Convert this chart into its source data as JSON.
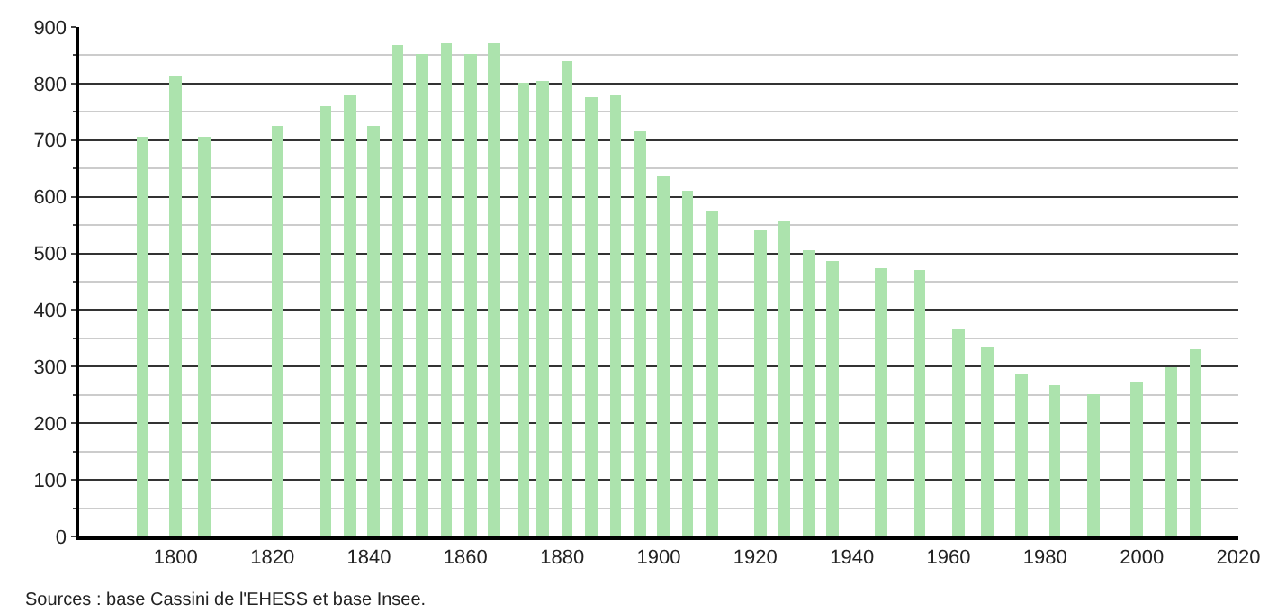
{
  "chart_data": {
    "type": "bar",
    "color": "#ace3ad",
    "x": [
      1793,
      1800,
      1806,
      1821,
      1831,
      1836,
      1841,
      1846,
      1851,
      1856,
      1861,
      1866,
      1872,
      1876,
      1881,
      1886,
      1891,
      1896,
      1901,
      1906,
      1911,
      1921,
      1926,
      1931,
      1936,
      1946,
      1954,
      1962,
      1968,
      1975,
      1982,
      1990,
      1999,
      2006,
      2011
    ],
    "values": [
      707,
      815,
      707,
      725,
      760,
      780,
      725,
      868,
      852,
      870,
      852,
      870,
      800,
      805,
      840,
      775,
      778,
      715,
      635,
      612,
      577,
      540,
      555,
      505,
      485,
      473,
      470,
      367,
      333,
      287,
      268,
      250,
      272,
      298,
      330
    ],
    "xlim": [
      1780,
      2020
    ],
    "xticks": [
      1800,
      1820,
      1840,
      1860,
      1880,
      1900,
      1920,
      1940,
      1960,
      1980,
      2000,
      2020
    ],
    "ylim": [
      0,
      900
    ],
    "yticks": [
      0,
      100,
      200,
      300,
      400,
      500,
      600,
      700,
      800,
      900
    ],
    "grid": "y",
    "annotations": [
      "Sources : base Cassini de l'EHESS et base Insee."
    ]
  }
}
